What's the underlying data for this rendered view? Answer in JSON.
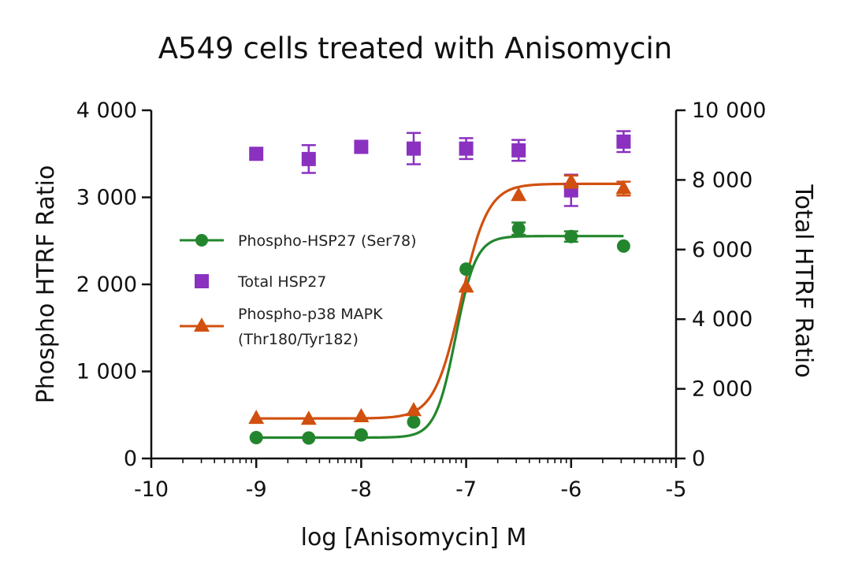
{
  "chart_data": {
    "type": "scatter",
    "title": "A549 cells treated with Anisomycin",
    "xlabel": "log [Anisomycin] M",
    "ylabel_left": "Phospho HTRF Ratio",
    "ylabel_right": "Total HTRF Ratio",
    "xlim": [
      -10,
      -5
    ],
    "ylim_left": [
      0,
      4000
    ],
    "ylim_right": [
      0,
      10000
    ],
    "x_ticks": [
      -10,
      -9,
      -8,
      -7,
      -6,
      -5
    ],
    "x_tick_labels": [
      "-10",
      "-9",
      "-8",
      "-7",
      "-6",
      "-5"
    ],
    "y_left_ticks": [
      0,
      1000,
      2000,
      3000,
      4000
    ],
    "y_left_tick_labels": [
      "0",
      "1 000",
      "2 000",
      "3 000",
      "4 000"
    ],
    "y_right_ticks": [
      0,
      2000,
      4000,
      6000,
      8000,
      10000
    ],
    "y_right_tick_labels": [
      "0",
      "2 000",
      "4 000",
      "6 000",
      "8 000",
      "10 000"
    ],
    "grid": false,
    "legend_position": "center-left",
    "series": [
      {
        "name": "Phospho-HSP27 (Ser78)",
        "axis": "left",
        "marker": "circle",
        "color": "#23862e",
        "x": [
          -9,
          -8.5,
          -8,
          -7.5,
          -7,
          -6.5,
          -6,
          -5.5
        ],
        "y": [
          240,
          235,
          270,
          420,
          2175,
          2640,
          2550,
          2440
        ],
        "err": [
          0,
          0,
          0,
          0,
          0,
          70,
          60,
          0
        ],
        "fit": {
          "bottom": 240,
          "top": 2555,
          "logEC50": -7.1,
          "hill": 4.5
        }
      },
      {
        "name": "Total HSP27",
        "axis": "right",
        "marker": "square",
        "color": "#8a31c0",
        "x": [
          -9,
          -8.5,
          -8,
          -7.5,
          -7,
          -6.5,
          -6,
          -5.5
        ],
        "y": [
          8750,
          8600,
          8950,
          8900,
          8900,
          8850,
          7700,
          9100
        ],
        "err": [
          0,
          400,
          0,
          450,
          300,
          300,
          450,
          300
        ]
      },
      {
        "name": "Phospho-p38 MAPK (Thr180/Tyr182)",
        "axis": "left",
        "marker": "triangle",
        "color": "#d1500f",
        "x": [
          -9,
          -8.5,
          -8,
          -7.5,
          -7,
          -6.5,
          -6,
          -5.5
        ],
        "y": [
          460,
          450,
          480,
          550,
          1970,
          3020,
          3180,
          3100
        ],
        "err": [
          0,
          0,
          0,
          0,
          0,
          0,
          70,
          80
        ],
        "fit": {
          "bottom": 460,
          "top": 3155,
          "logEC50": -7.05,
          "hill": 3.4
        }
      }
    ]
  },
  "legend": {
    "line1": "Phospho-HSP27 (Ser78)",
    "line2": "Total HSP27",
    "line3a": "Phospho-p38 MAPK",
    "line3b": "(Thr180/Tyr182)"
  }
}
